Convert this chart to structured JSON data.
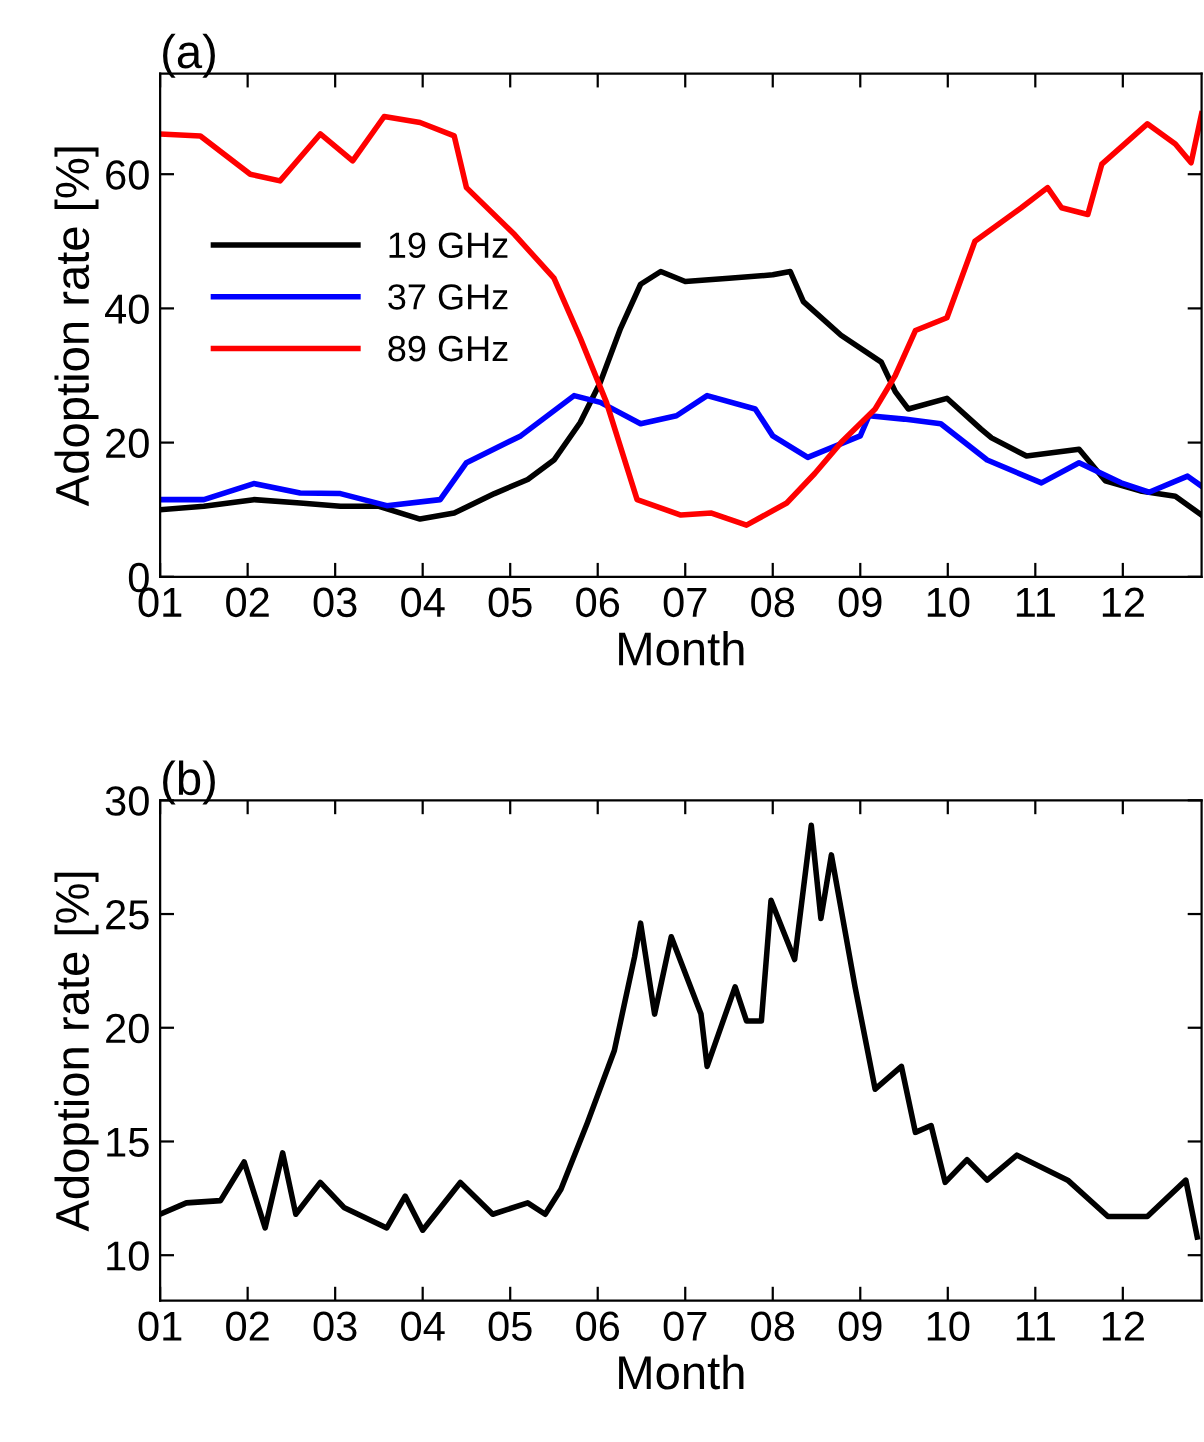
{
  "chart_data": [
    {
      "type": "line",
      "title": "(a)",
      "xlabel": "Month",
      "ylabel": "Adoption rate [%]",
      "xlim": [
        1,
        12.9
      ],
      "ylim": [
        0,
        75
      ],
      "xticks": [
        {
          "value": 1,
          "label": "01"
        },
        {
          "value": 2,
          "label": "02"
        },
        {
          "value": 3,
          "label": "03"
        },
        {
          "value": 4,
          "label": "04"
        },
        {
          "value": 5,
          "label": "05"
        },
        {
          "value": 6,
          "label": "06"
        },
        {
          "value": 7,
          "label": "07"
        },
        {
          "value": 8,
          "label": "08"
        },
        {
          "value": 9,
          "label": "09"
        },
        {
          "value": 10,
          "label": "10"
        },
        {
          "value": 11,
          "label": "11"
        },
        {
          "value": 12,
          "label": "12"
        }
      ],
      "yticks": [
        0,
        20,
        40,
        60
      ],
      "grid": false,
      "legend": "center left",
      "line_style": "solid",
      "marker": "none",
      "series": [
        {
          "name": "19 GHz",
          "color": "#000000",
          "x": [
            1.0,
            1.5,
            2.07,
            2.6,
            3.06,
            3.5,
            3.97,
            4.36,
            4.82,
            5.2,
            5.5,
            5.8,
            6.03,
            6.26,
            6.49,
            6.72,
            7.0,
            7.5,
            8.0,
            8.2,
            8.35,
            8.78,
            9.24,
            9.4,
            9.55,
            9.99,
            10.38,
            10.5,
            10.9,
            11.5,
            11.8,
            12.2,
            12.6,
            12.9
          ],
          "values": [
            10,
            10.5,
            11.5,
            11,
            10.5,
            10.5,
            8.6,
            9.5,
            12.4,
            14.5,
            17.4,
            23,
            29,
            37,
            43.6,
            45.5,
            44,
            44.5,
            45,
            45.5,
            41,
            36,
            32,
            27.6,
            25,
            26.6,
            22,
            20.7,
            18,
            19,
            14.3,
            12.8,
            12,
            9.2
          ]
        },
        {
          "name": "37 GHz",
          "color": "#0000ff",
          "x": [
            1.0,
            1.5,
            2.07,
            2.6,
            3.06,
            3.59,
            4.2,
            4.5,
            5.12,
            5.73,
            6.03,
            6.49,
            6.9,
            7.25,
            7.8,
            8.0,
            8.4,
            9.0,
            9.1,
            9.5,
            9.92,
            10.45,
            11.07,
            11.5,
            11.98,
            12.3,
            12.74,
            12.9
          ],
          "values": [
            11.5,
            11.5,
            13.9,
            12.5,
            12.4,
            10.6,
            11.5,
            17,
            21,
            27,
            26,
            22.8,
            24,
            27,
            25,
            21,
            17.8,
            21,
            24,
            23.5,
            22.8,
            17.4,
            14,
            17,
            14,
            12.6,
            15,
            13.5
          ]
        },
        {
          "name": "89 GHz",
          "color": "#ff0000",
          "x": [
            1.0,
            1.46,
            2.03,
            2.37,
            2.83,
            3.2,
            3.56,
            3.97,
            4.36,
            4.5,
            5.05,
            5.5,
            5.8,
            6.1,
            6.45,
            6.95,
            7.3,
            7.7,
            8.16,
            8.48,
            8.78,
            9.17,
            9.4,
            9.63,
            9.99,
            10.31,
            10.84,
            11.14,
            11.3,
            11.6,
            11.76,
            12.28,
            12.6,
            12.78,
            12.9
          ],
          "values": [
            66,
            65.7,
            60,
            59,
            66,
            62,
            68.6,
            67.7,
            65.7,
            58,
            51,
            44.5,
            35.6,
            26,
            11.5,
            9.2,
            9.5,
            7.7,
            11,
            15.4,
            20,
            25,
            30,
            36.7,
            38.6,
            50,
            55,
            58,
            55,
            54,
            61.5,
            67.5,
            64.5,
            61.7,
            69
          ]
        }
      ]
    },
    {
      "type": "line",
      "title": "(b)",
      "xlabel": "Month",
      "ylabel": "Adoption rate [%]",
      "xlim": [
        1,
        12.9
      ],
      "ylim": [
        8,
        30
      ],
      "xticks": [
        {
          "value": 1,
          "label": "01"
        },
        {
          "value": 2,
          "label": "02"
        },
        {
          "value": 3,
          "label": "03"
        },
        {
          "value": 4,
          "label": "04"
        },
        {
          "value": 5,
          "label": "05"
        },
        {
          "value": 6,
          "label": "06"
        },
        {
          "value": 7,
          "label": "07"
        },
        {
          "value": 8,
          "label": "08"
        },
        {
          "value": 9,
          "label": "09"
        },
        {
          "value": 10,
          "label": "10"
        },
        {
          "value": 11,
          "label": "11"
        },
        {
          "value": 12,
          "label": "12"
        }
      ],
      "yticks": [
        10,
        15,
        20,
        25,
        30
      ],
      "grid": false,
      "line_style": "solid",
      "marker": "none",
      "series": [
        {
          "color": "#000000",
          "x": [
            1.0,
            1.3,
            1.69,
            1.96,
            2.2,
            2.4,
            2.55,
            2.83,
            3.1,
            3.59,
            3.8,
            4.0,
            4.43,
            4.8,
            5.2,
            5.4,
            5.58,
            5.88,
            6.19,
            6.42,
            6.49,
            6.65,
            6.84,
            7.18,
            7.25,
            7.57,
            7.7,
            7.87,
            7.98,
            8.25,
            8.44,
            8.55,
            8.67,
            8.94,
            9.17,
            9.47,
            9.63,
            9.81,
            9.97,
            10.22,
            10.45,
            10.79,
            11.37,
            11.83,
            12.28,
            12.72,
            12.85
          ],
          "values": [
            11.8,
            12.3,
            12.4,
            14.1,
            11.2,
            14.5,
            11.8,
            13.2,
            12.1,
            11.2,
            12.6,
            11.1,
            13.2,
            11.8,
            12.3,
            11.8,
            12.9,
            15.8,
            19,
            23.1,
            24.6,
            20.6,
            24,
            20.6,
            18.3,
            21.8,
            20.3,
            20.3,
            25.6,
            23,
            28.9,
            24.8,
            27.6,
            21.8,
            17.3,
            18.3,
            15.4,
            15.7,
            13.2,
            14.2,
            13.3,
            14.4,
            13.3,
            11.7,
            11.7,
            13.3,
            10.8
          ]
        }
      ]
    }
  ]
}
